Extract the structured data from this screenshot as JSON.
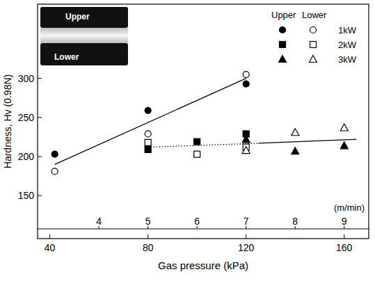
{
  "chart_data": {
    "type": "scatter",
    "x_label": "Gas pressure (kPa)",
    "y_label": "Hardness, Hv (0.98N)",
    "xlim": [
      35,
      170
    ],
    "xticks": [
      40,
      80,
      120,
      160
    ],
    "ylim": [
      95,
      395
    ],
    "yticks": [
      150,
      200,
      250,
      300
    ],
    "x2label": "(m/min)",
    "x2lim": [
      2.75,
      9.5
    ],
    "x2ticks": [
      4,
      5,
      6,
      7,
      8,
      9
    ],
    "grid": false,
    "legend": "upper right",
    "legend_header": [
      "Upper",
      "Lower"
    ],
    "inset_labels": [
      "Upper",
      "Lower"
    ],
    "series": [
      {
        "name": "1kW",
        "marker": "filled-circle",
        "color": "#000000",
        "x": [
          42,
          80,
          120
        ],
        "values": [
          203,
          259,
          293
        ]
      },
      {
        "name": "1kW",
        "marker": "open-circle",
        "color": "#000000",
        "x": [
          42,
          80,
          120
        ],
        "values": [
          181,
          229,
          305
        ]
      },
      {
        "name": "2kW",
        "marker": "filled-square",
        "color": "#000000",
        "x": [
          80,
          100,
          120
        ],
        "values": [
          209,
          219,
          229
        ]
      },
      {
        "name": "2kW",
        "marker": "open-square",
        "color": "#000000",
        "x": [
          80,
          100,
          120
        ],
        "values": [
          218,
          203,
          212
        ]
      },
      {
        "name": "3kW",
        "marker": "filled-triangle",
        "color": "#000000",
        "x": [
          120,
          140,
          160
        ],
        "values": [
          222,
          207,
          214
        ]
      },
      {
        "name": "3kW",
        "marker": "open-triangle",
        "color": "#000000",
        "x": [
          120,
          140,
          160
        ],
        "values": [
          208,
          231,
          237
        ]
      },
      {
        "type": "line",
        "line_style": "solid",
        "color": "#000000",
        "x": [
          42,
          120
        ],
        "values": [
          190,
          300
        ]
      },
      {
        "type": "line",
        "line_style": "dotted",
        "color": "#000000",
        "x": [
          80,
          125
        ],
        "values": [
          212,
          217
        ]
      },
      {
        "type": "line",
        "line_style": "solid",
        "color": "#000000",
        "x": [
          125,
          165
        ],
        "values": [
          217,
          222
        ]
      }
    ]
  }
}
